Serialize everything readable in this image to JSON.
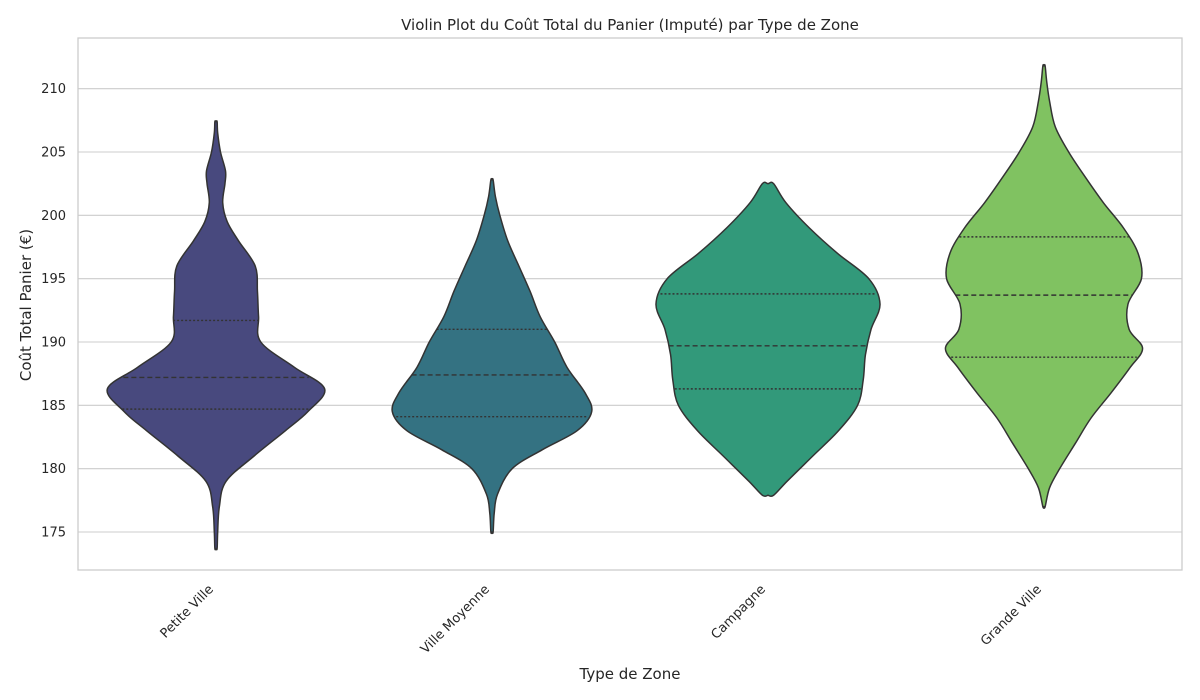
{
  "chart_data": {
    "type": "violin",
    "title": "Violin Plot du Coût Total du Panier (Imputé) par Type de Zone",
    "xlabel": "Type de Zone",
    "ylabel": "Coût Total Panier (€)",
    "ylim": [
      172,
      214
    ],
    "yticks": [
      175,
      180,
      185,
      190,
      195,
      200,
      205,
      210
    ],
    "grid": true,
    "legend": "none",
    "categories": [
      "Petite Ville",
      "Ville Moyenne",
      "Campagne",
      "Grande Ville"
    ],
    "colors": [
      "#48497e",
      "#347282",
      "#32997a",
      "#80c261"
    ],
    "violins": [
      {
        "category": "Petite Ville",
        "min": 173.7,
        "max": 207.4,
        "q1": 184.7,
        "median": 187.2,
        "q3": 191.7,
        "density": [
          [
            173.7,
            0.01
          ],
          [
            175,
            0.015
          ],
          [
            177,
            0.03
          ],
          [
            179,
            0.09
          ],
          [
            181,
            0.34
          ],
          [
            183,
            0.62
          ],
          [
            184.5,
            0.82
          ],
          [
            186.3,
            0.97
          ],
          [
            188,
            0.7
          ],
          [
            190,
            0.4
          ],
          [
            192,
            0.38
          ],
          [
            194,
            0.37
          ],
          [
            196,
            0.35
          ],
          [
            198,
            0.2
          ],
          [
            199.5,
            0.1
          ],
          [
            201,
            0.06
          ],
          [
            202.5,
            0.08
          ],
          [
            203.5,
            0.085
          ],
          [
            205,
            0.04
          ],
          [
            206.5,
            0.015
          ],
          [
            207.4,
            0.01
          ]
        ]
      },
      {
        "category": "Ville Moyenne",
        "min": 175,
        "max": 202.8,
        "q1": 184.1,
        "median": 187.4,
        "q3": 191.0,
        "density": [
          [
            175,
            0.01
          ],
          [
            176.5,
            0.02
          ],
          [
            178,
            0.05
          ],
          [
            180,
            0.18
          ],
          [
            181.5,
            0.45
          ],
          [
            183,
            0.76
          ],
          [
            184.5,
            0.89
          ],
          [
            186,
            0.83
          ],
          [
            188,
            0.67
          ],
          [
            190,
            0.56
          ],
          [
            192,
            0.43
          ],
          [
            194,
            0.34
          ],
          [
            196,
            0.24
          ],
          [
            198,
            0.14
          ],
          [
            200,
            0.07
          ],
          [
            201.5,
            0.03
          ],
          [
            202.8,
            0.01
          ]
        ]
      },
      {
        "category": "Campagne",
        "min": 177.9,
        "max": 202.5,
        "q1": 186.3,
        "median": 189.7,
        "q3": 193.8,
        "density": [
          [
            177.9,
            0.05
          ],
          [
            179,
            0.17
          ],
          [
            181,
            0.4
          ],
          [
            183,
            0.63
          ],
          [
            185,
            0.8
          ],
          [
            187,
            0.85
          ],
          [
            189,
            0.87
          ],
          [
            191,
            0.92
          ],
          [
            193,
            1.0
          ],
          [
            195,
            0.9
          ],
          [
            197,
            0.62
          ],
          [
            199,
            0.37
          ],
          [
            201,
            0.16
          ],
          [
            202.5,
            0.05
          ]
        ]
      },
      {
        "category": "Grande Ville",
        "min": 177,
        "max": 211.8,
        "q1": 188.8,
        "median": 193.7,
        "q3": 198.3,
        "density": [
          [
            177,
            0.01
          ],
          [
            178.5,
            0.05
          ],
          [
            180,
            0.14
          ],
          [
            182,
            0.28
          ],
          [
            184,
            0.42
          ],
          [
            186,
            0.6
          ],
          [
            188,
            0.77
          ],
          [
            189.5,
            0.88
          ],
          [
            191,
            0.76
          ],
          [
            193,
            0.75
          ],
          [
            195,
            0.87
          ],
          [
            197,
            0.84
          ],
          [
            199,
            0.71
          ],
          [
            201,
            0.53
          ],
          [
            203,
            0.37
          ],
          [
            205,
            0.22
          ],
          [
            207,
            0.1
          ],
          [
            209,
            0.05
          ],
          [
            210.5,
            0.025
          ],
          [
            211.8,
            0.01
          ]
        ]
      }
    ]
  }
}
